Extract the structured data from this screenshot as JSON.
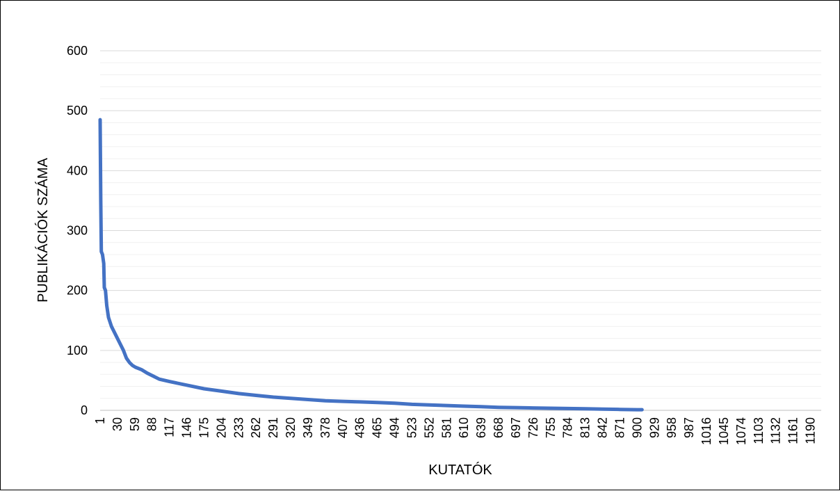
{
  "chart_data": {
    "type": "line",
    "title": "",
    "xlabel": "KUTATÓK",
    "ylabel": "PUBLIKÁCIÓK SZÁMA",
    "ylim": [
      0,
      600
    ],
    "y_major_ticks": [
      0,
      100,
      200,
      300,
      400,
      500,
      600
    ],
    "y_minor_step": 20,
    "x_range": [
      1,
      1208
    ],
    "x_tick_labels": [
      "1",
      "30",
      "59",
      "88",
      "117",
      "146",
      "175",
      "204",
      "233",
      "262",
      "291",
      "320",
      "349",
      "378",
      "407",
      "436",
      "465",
      "494",
      "523",
      "552",
      "581",
      "610",
      "639",
      "668",
      "697",
      "726",
      "755",
      "784",
      "813",
      "842",
      "871",
      "900",
      "929",
      "958",
      "987",
      "1016",
      "1045",
      "1074",
      "1103",
      "1132",
      "1161",
      "1190"
    ],
    "grid": true,
    "legend": "none",
    "series_color": "#4472C4",
    "series": [
      {
        "x": [
          1,
          2,
          3,
          5,
          7,
          8,
          10,
          12,
          15,
          20,
          25,
          30,
          40,
          45,
          50,
          55,
          60,
          70,
          80,
          90,
          100,
          117,
          146,
          175,
          204,
          233,
          262,
          291,
          320,
          349,
          378,
          407,
          436,
          465,
          494,
          523,
          552,
          581,
          610,
          639,
          668,
          697,
          726,
          755,
          784,
          813,
          842,
          871,
          900,
          908
        ],
        "y": [
          485,
          350,
          265,
          260,
          245,
          205,
          200,
          175,
          155,
          140,
          130,
          120,
          100,
          87,
          80,
          75,
          72,
          68,
          62,
          57,
          52,
          48,
          42,
          36,
          32,
          28,
          25,
          22,
          20,
          18,
          16,
          15,
          14,
          13,
          12,
          10,
          9,
          8,
          7,
          6,
          5,
          4.5,
          4,
          3.5,
          3,
          2.5,
          2,
          1.5,
          1,
          1
        ]
      }
    ]
  }
}
